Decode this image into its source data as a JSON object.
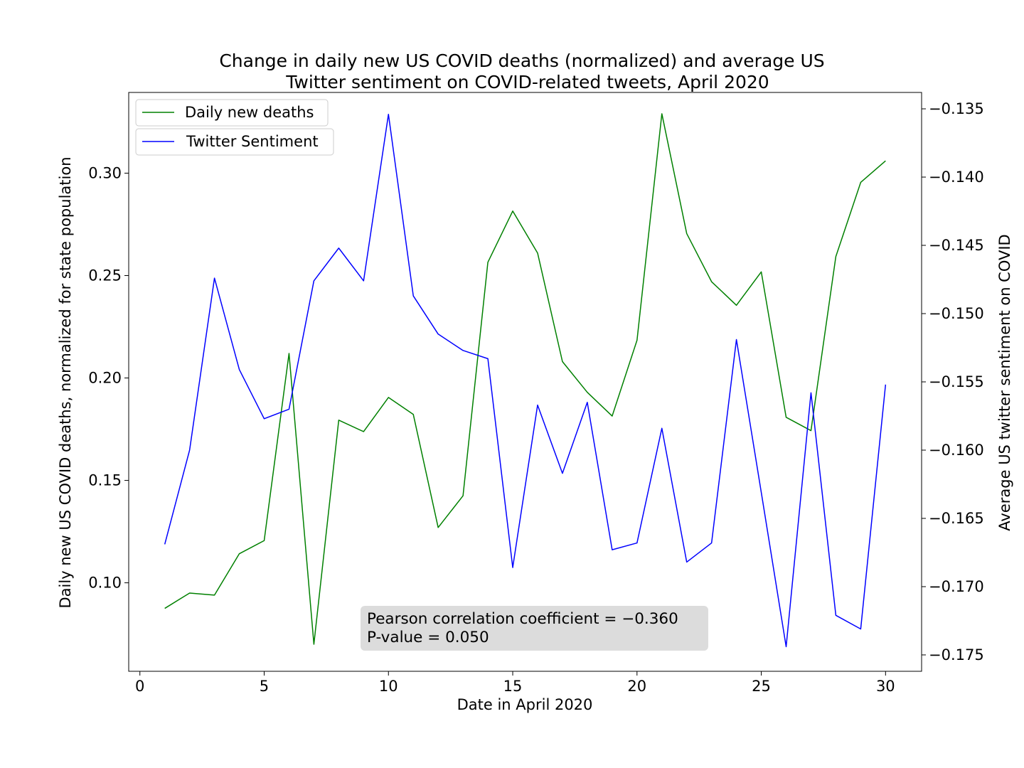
{
  "chart_data": {
    "type": "line",
    "title_lines": [
      "Change in daily new US COVID deaths (normalized) and average US",
      "Twitter sentiment on COVID-related tweets, April 2020"
    ],
    "xlabel": "Date in April 2020",
    "ylabel_left": "Daily new US COVID deaths, normalized for state population",
    "ylabel_right": "Average US twitter sentiment on COVID",
    "xlim": [
      -0.45,
      31.45
    ],
    "ylim_left": [
      0.0568,
      0.3394
    ],
    "ylim_right": [
      -0.1762,
      -0.1338
    ],
    "x_ticks": [
      0,
      5,
      10,
      15,
      20,
      25,
      30
    ],
    "x_tick_labels": [
      "0",
      "5",
      "10",
      "15",
      "20",
      "25",
      "30"
    ],
    "y_left_ticks": [
      0.1,
      0.15,
      0.2,
      0.25,
      0.3
    ],
    "y_left_tick_labels": [
      "0.10",
      "0.15",
      "0.20",
      "0.25",
      "0.30"
    ],
    "y_right_ticks": [
      -0.175,
      -0.17,
      -0.165,
      -0.16,
      -0.155,
      -0.15,
      -0.145,
      -0.14,
      -0.135
    ],
    "y_right_tick_labels": [
      "−0.175",
      "−0.170",
      "−0.165",
      "−0.160",
      "−0.155",
      "−0.150",
      "−0.145",
      "−0.140",
      "−0.135"
    ],
    "x": [
      1,
      2,
      3,
      4,
      5,
      6,
      7,
      8,
      9,
      10,
      11,
      12,
      13,
      14,
      15,
      16,
      17,
      18,
      19,
      20,
      21,
      22,
      23,
      24,
      25,
      26,
      27,
      28,
      29,
      30
    ],
    "series": [
      {
        "name": "Daily new deaths",
        "axis": "left",
        "color": "#008000",
        "values": [
          0.0875,
          0.095,
          0.094,
          0.1142,
          0.1206,
          0.212,
          0.07,
          0.1794,
          0.1738,
          0.1905,
          0.1822,
          0.127,
          0.1425,
          0.2565,
          0.2815,
          0.261,
          0.208,
          0.193,
          0.1814,
          0.2184,
          0.329,
          0.2705,
          0.247,
          0.2355,
          0.2518,
          0.1808,
          0.1743,
          0.2593,
          0.2955,
          0.306
        ]
      },
      {
        "name": "Twitter Sentiment",
        "axis": "right",
        "color": "#0000ff",
        "values": [
          -0.1669,
          -0.16,
          -0.1474,
          -0.1541,
          -0.1577,
          -0.157,
          -0.1476,
          -0.1452,
          -0.1476,
          -0.1354,
          -0.1487,
          -0.1515,
          -0.1527,
          -0.1533,
          -0.1686,
          -0.1567,
          -0.1617,
          -0.1565,
          -0.1673,
          -0.1668,
          -0.1584,
          -0.1682,
          -0.1668,
          -0.1519,
          -0.1631,
          -0.1744,
          -0.1558,
          -0.1721,
          -0.1731,
          -0.1552
        ]
      }
    ],
    "legend_placement": "top-left",
    "grid": false,
    "annotation_lines": [
      "Pearson correlation coefficient = −0.360",
      "P-value = 0.050"
    ]
  }
}
